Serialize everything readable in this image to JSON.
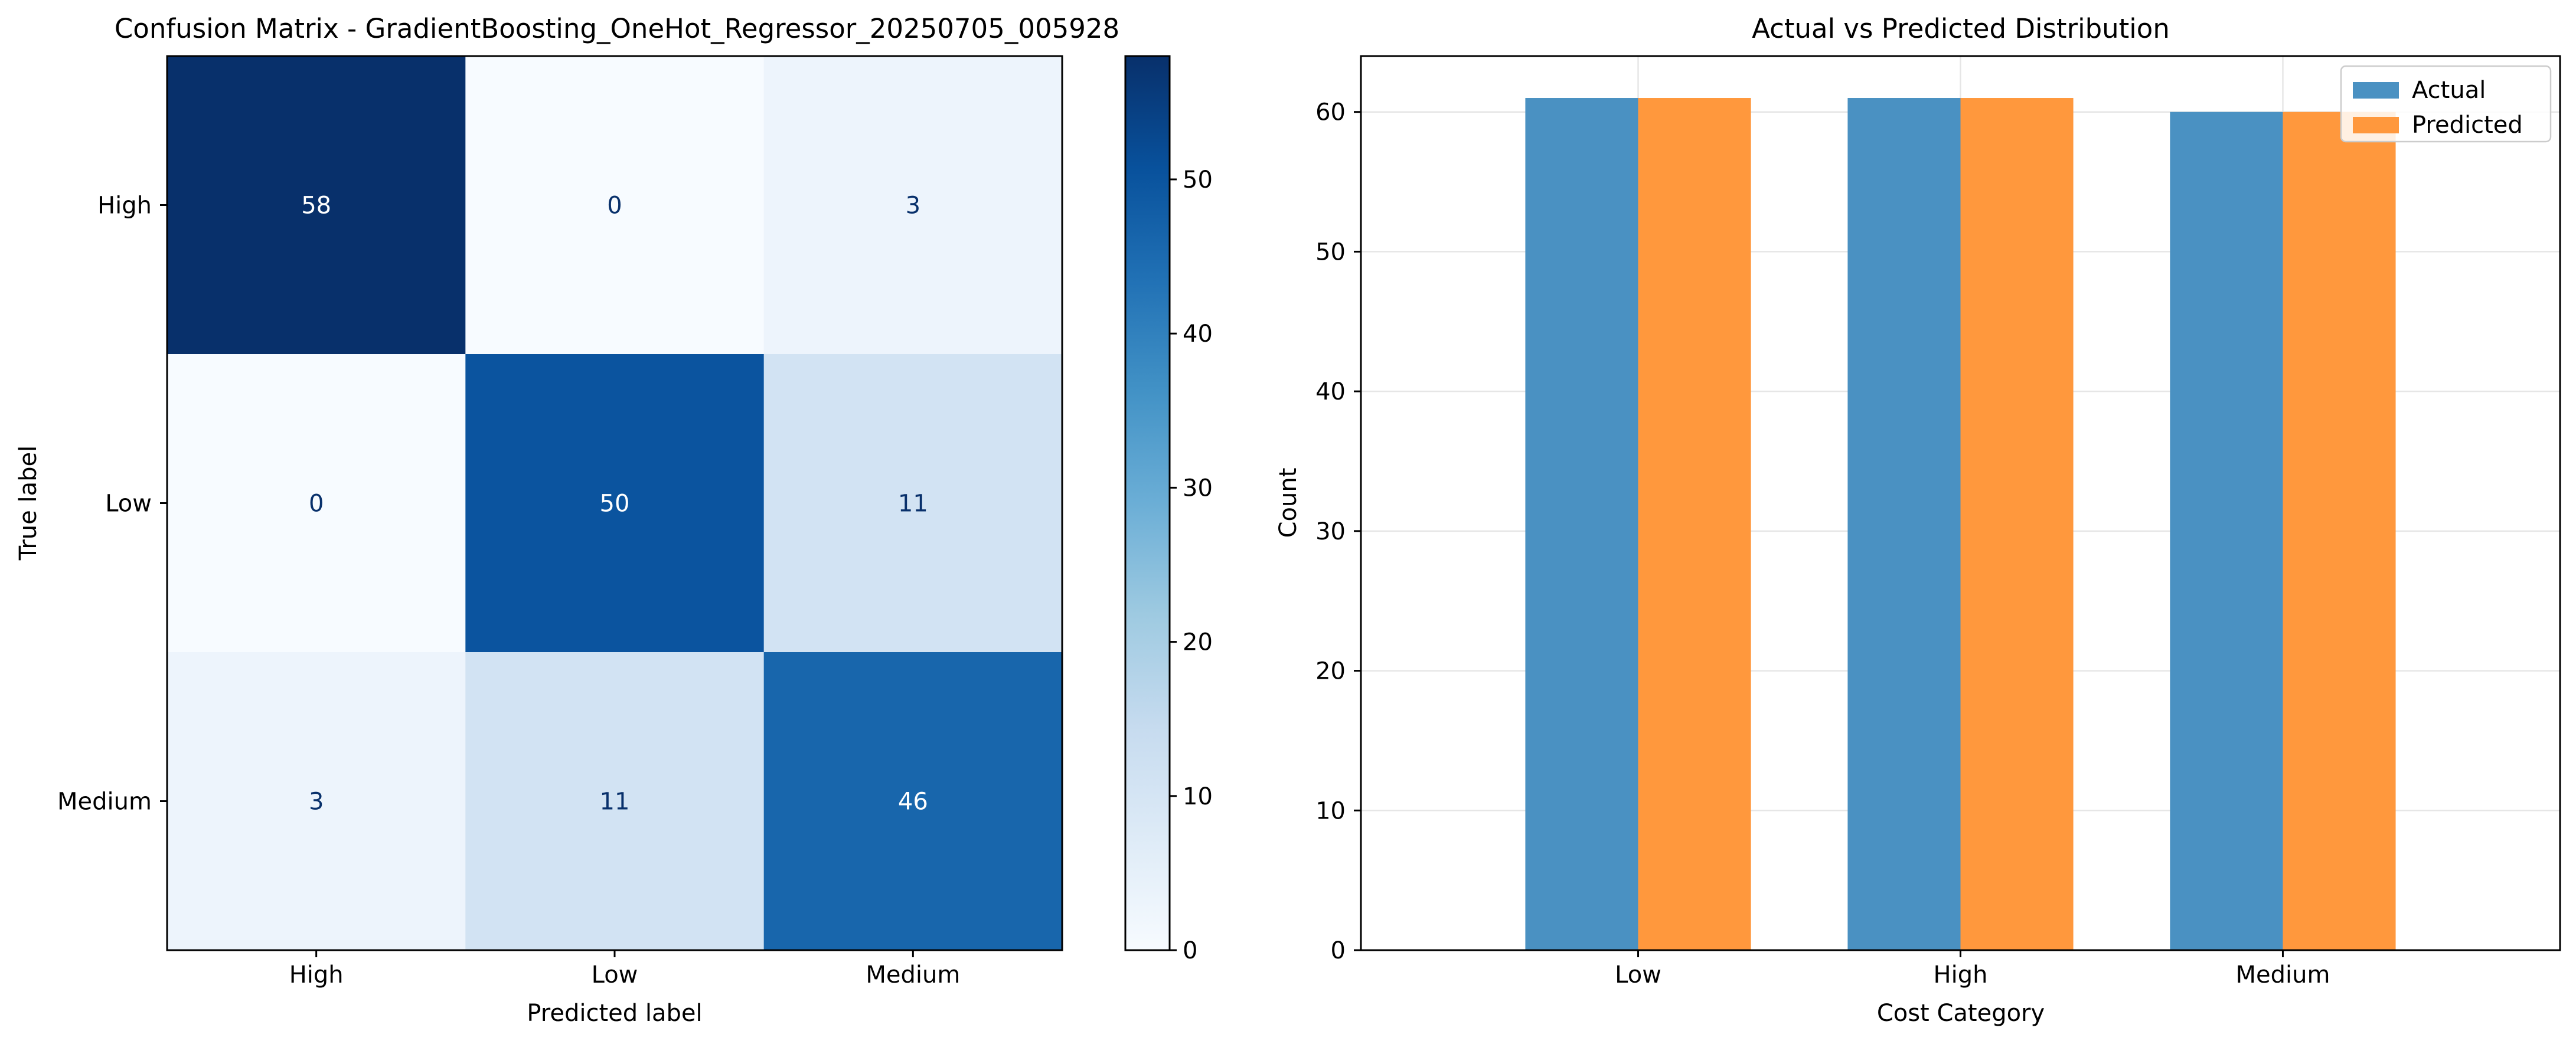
{
  "chart_data": [
    {
      "type": "heatmap",
      "title": "Confusion Matrix - GradientBoosting_OneHot_Regressor_20250705_005928",
      "xlabel": "Predicted label",
      "ylabel": "True label",
      "x_categories": [
        "High",
        "Low",
        "Medium"
      ],
      "y_categories": [
        "High",
        "Low",
        "Medium"
      ],
      "values": [
        [
          58,
          0,
          3
        ],
        [
          0,
          50,
          11
        ],
        [
          3,
          11,
          46
        ]
      ],
      "colormap": "Blues",
      "colorbar": {
        "range": [
          0,
          58
        ],
        "ticks": [
          "0",
          "10",
          "20",
          "30",
          "40",
          "50"
        ]
      },
      "colors": {
        "light_text": "#ffffff",
        "dark_text": "#08306b"
      }
    },
    {
      "type": "bar",
      "title": "Actual vs Predicted Distribution",
      "xlabel": "Cost Category",
      "ylabel": "Count",
      "categories": [
        "Low",
        "High",
        "Medium"
      ],
      "series": [
        {
          "name": "Actual",
          "values": [
            61,
            61,
            60
          ],
          "color": "#4a91c2"
        },
        {
          "name": "Predicted",
          "values": [
            61,
            61,
            60
          ],
          "color": "#ff983d"
        }
      ],
      "ylim": [
        0,
        64
      ],
      "yticks": [
        "0",
        "10",
        "20",
        "30",
        "40",
        "50",
        "60"
      ],
      "grid": true,
      "legend": "top-right"
    }
  ]
}
